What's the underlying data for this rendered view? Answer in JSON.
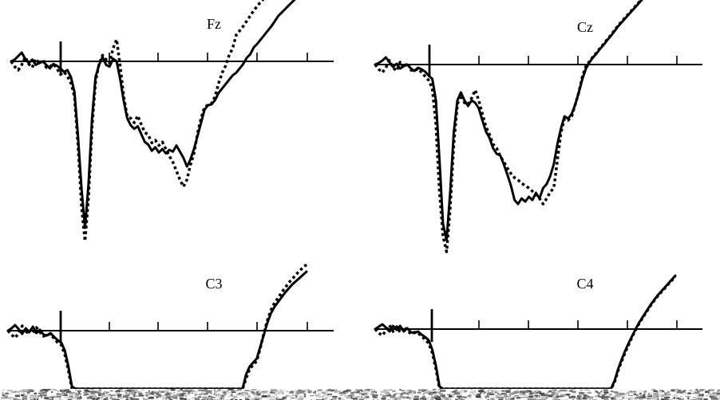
{
  "chart_data": [
    {
      "type": "line",
      "title": "Fz",
      "xlabel": "",
      "ylabel": "",
      "x": [
        0,
        4.5,
        9,
        13.5,
        18,
        22.5,
        27,
        31.5,
        36,
        40.5,
        45,
        49.5,
        54,
        58.5,
        63,
        67.5,
        72,
        76.5,
        81,
        85.5,
        90,
        94.5,
        99,
        103.5,
        108,
        112.5,
        117,
        121.5,
        126,
        130.5,
        135,
        139.5,
        144,
        148.5,
        153,
        157.5,
        162,
        166.5,
        171,
        175.5,
        180,
        184.5,
        189,
        193.5,
        198,
        202.5,
        207,
        211.5,
        216,
        220.5,
        225,
        229.5,
        234,
        238.5,
        243,
        247.5,
        252,
        256.5,
        261,
        265.5,
        270,
        274.5,
        279,
        283.5,
        288,
        292.5,
        297,
        301.5,
        306,
        310.5,
        315,
        319.5,
        324,
        328.5,
        333,
        337.5,
        342,
        346.5,
        351,
        355.5,
        360,
        364.5,
        369,
        373.5,
        378
      ],
      "series": [
        {
          "values": [
            0.0,
            0.2,
            0.6,
            1.0,
            0.3,
            -0.2,
            0.2,
            -0.4,
            -0.2,
            0.0,
            -0.4,
            -0.8,
            -0.3,
            -0.5,
            -0.8,
            -1.2,
            -1.0,
            -1.8,
            -3.5,
            -8.5,
            -14.5,
            -19.0,
            -14.0,
            -6.5,
            -1.8,
            -0.4,
            0.5,
            -0.4,
            -0.6,
            0.3,
            0.0,
            -2.0,
            -4.5,
            -6.5,
            -7.3,
            -7.7,
            -7.4,
            -8.3,
            -9.2,
            -9.5,
            -10.2,
            -9.8,
            -10.4,
            -10.0,
            -10.5,
            -10.1,
            -10.3,
            -9.6,
            -10.3,
            -11.0,
            -12.0,
            -11.2,
            -10.0,
            -8.5,
            -7.0,
            -5.5,
            -5.0,
            -4.9,
            -4.4,
            -3.6,
            -3.1,
            -2.6,
            -2.1,
            -1.6,
            -1.3,
            -0.8,
            -0.3,
            0.4,
            0.8,
            1.6,
            2.0,
            2.5,
            3.0,
            3.5,
            4.0,
            4.6,
            5.2,
            5.6,
            6.0,
            6.4,
            6.8,
            7.2,
            7.6,
            8.0,
            8.4
          ]
        },
        {
          "values": [
            0.0,
            -0.6,
            -1.0,
            -0.4,
            0.5,
            -0.3,
            -0.7,
            0.3,
            -0.3,
            0.2,
            -0.7,
            -0.6,
            -0.3,
            -0.8,
            -1.5,
            -1.2,
            -1.7,
            -2.5,
            -4.0,
            -9.5,
            -16.5,
            -20.5,
            -15.5,
            -7.5,
            -2.3,
            -0.3,
            0.7,
            0.2,
            -0.2,
            1.5,
            2.5,
            -0.5,
            -4.0,
            -6.3,
            -6.5,
            -7.0,
            -6.2,
            -7.2,
            -8.1,
            -8.4,
            -9.3,
            -9.0,
            -9.6,
            -9.2,
            -10.0,
            -10.8,
            -11.5,
            -12.5,
            -13.5,
            -14.3,
            -13.5,
            -11.8,
            -10.5,
            -8.2,
            -6.5,
            -5.2,
            -5.0,
            -4.8,
            -4.0,
            -2.5,
            -1.3,
            -0.5,
            0.7,
            1.5,
            3.0,
            3.5,
            4.0,
            4.6,
            5.2,
            5.8,
            6.3,
            6.8,
            7.2,
            7.7,
            8.0,
            8.5,
            8.9,
            9.3,
            9.7,
            10.0,
            10.4,
            10.8,
            11.2,
            11.6,
            12.0
          ]
        }
      ]
    },
    {
      "type": "line",
      "title": "Cz",
      "xlabel": "",
      "ylabel": "",
      "x": [
        0,
        4.5,
        9,
        13.5,
        18,
        22.5,
        27,
        31.5,
        36,
        40.5,
        45,
        49.5,
        54,
        58.5,
        63,
        67.5,
        72,
        76.5,
        81,
        85.5,
        90,
        94.5,
        99,
        103.5,
        108,
        112.5,
        117,
        121.5,
        126,
        130.5,
        135,
        139.5,
        144,
        148.5,
        153,
        157.5,
        162,
        166.5,
        171,
        175.5,
        180,
        184.5,
        189,
        193.5,
        198,
        202.5,
        207,
        211.5,
        216,
        220.5,
        225,
        229.5,
        234,
        238.5,
        243,
        247.5,
        252,
        256.5,
        261,
        265.5,
        270,
        274.5,
        279,
        283.5,
        288,
        292.5,
        297,
        301.5,
        306,
        310.5,
        315,
        319.5,
        324,
        328.5,
        333,
        337.5,
        342,
        346.5,
        351,
        355.5,
        360,
        364.5,
        369,
        373.5,
        378
      ],
      "series": [
        {
          "values": [
            0.0,
            0.2,
            0.5,
            0.9,
            0.3,
            -0.3,
            0.1,
            -0.5,
            -0.2,
            0.0,
            -0.5,
            -0.8,
            -0.4,
            -0.6,
            -0.9,
            -1.4,
            -1.8,
            -4.5,
            -12.0,
            -20.0,
            -22.0,
            -16.0,
            -8.5,
            -4.5,
            -3.5,
            -4.5,
            -5.2,
            -4.5,
            -4.8,
            -5.5,
            -7.0,
            -8.4,
            -9.2,
            -10.5,
            -11.2,
            -11.4,
            -12.5,
            -13.8,
            -15.2,
            -17.0,
            -17.5,
            -16.8,
            -17.2,
            -16.6,
            -17.0,
            -16.1,
            -16.8,
            -15.5,
            -15.0,
            -14.0,
            -12.5,
            -10.0,
            -8.0,
            -6.5,
            -6.8,
            -6.2,
            -5.0,
            -3.5,
            -1.8,
            -0.5,
            0.3,
            0.9,
            1.4,
            2.0,
            2.5,
            3.1,
            3.6,
            4.2,
            4.8,
            5.3,
            5.8,
            6.3,
            6.8,
            7.3,
            7.8,
            8.3,
            8.8,
            9.3,
            9.8,
            10.2,
            10.6,
            11.0,
            11.4,
            11.8,
            12.2
          ]
        },
        {
          "values": [
            0.0,
            -0.6,
            -1.0,
            -0.4,
            0.5,
            -0.4,
            -0.8,
            0.3,
            -0.4,
            0.2,
            -0.7,
            -0.8,
            -0.5,
            -1.0,
            -1.5,
            -2.0,
            -3.0,
            -7.5,
            -16.0,
            -21.5,
            -23.5,
            -18.0,
            -10.0,
            -5.0,
            -3.8,
            -4.8,
            -5.0,
            -4.2,
            -3.2,
            -4.5,
            -6.2,
            -7.8,
            -8.8,
            -10.0,
            -10.5,
            -11.5,
            -12.2,
            -13.0,
            -13.7,
            -14.2,
            -14.5,
            -14.9,
            -15.2,
            -15.5,
            -15.9,
            -16.3,
            -16.8,
            -17.5,
            -16.8,
            -16.0,
            -15.5,
            -12.0,
            -8.5,
            -6.8,
            -7.0,
            -6.5,
            -5.0,
            -3.5,
            -1.5,
            -0.2,
            0.4,
            1.0,
            1.5,
            2.1,
            2.6,
            3.2,
            3.7,
            4.3,
            4.9,
            5.4,
            5.9,
            6.4,
            6.9,
            7.4,
            7.9,
            8.4,
            8.9,
            9.4,
            9.9,
            10.3,
            10.7,
            11.1,
            11.5,
            11.9,
            12.3
          ]
        }
      ]
    },
    {
      "type": "line",
      "title": "C3",
      "xlabel": "",
      "ylabel": "",
      "x": [
        0,
        4.5,
        9,
        13.5,
        18,
        22.5,
        27,
        31.5,
        36,
        40.5,
        45,
        49.5,
        54,
        58.5,
        63,
        67.5,
        72,
        76.5,
        81,
        85.5,
        90,
        94.5,
        99,
        103.5,
        108,
        112.5,
        117,
        121.5,
        126,
        130.5,
        135,
        139.5,
        144,
        148.5,
        153,
        157.5,
        162,
        166.5,
        171,
        175.5,
        180,
        184.5,
        189,
        193.5,
        198,
        202.5,
        207,
        211.5,
        216,
        220.5,
        225,
        229.5,
        234,
        238.5,
        243,
        247.5,
        252,
        256.5,
        261,
        265.5,
        270,
        274.5,
        279,
        283.5,
        288,
        292.5,
        297,
        301.5,
        306,
        310.5,
        315,
        319.5,
        324,
        328.5,
        333,
        337.5,
        342,
        346.5,
        351,
        355.5,
        360,
        364.5,
        369,
        373.5,
        378
      ],
      "series": [
        {
          "values": [
            0.0,
            0.3,
            0.7,
            0.2,
            -0.4,
            0.3,
            -0.2,
            0.5,
            -0.3,
            0.1,
            -0.5,
            -0.6,
            -0.3,
            -0.8,
            -1.2,
            -1.5,
            -2.5,
            -4.5,
            -7.0,
            -8.5,
            -9.5,
            -10.0,
            -10.0,
            -10.0,
            -10.0,
            -10.0,
            -10.0,
            -10.0,
            -10.0,
            -10.0,
            -10.0,
            -10.0,
            -10.0,
            -10.0,
            -10.0,
            -10.0,
            -10.0,
            -10.0,
            -10.0,
            -10.0,
            -10.0,
            -10.0,
            -10.0,
            -10.0,
            -10.0,
            -10.0,
            -10.0,
            -10.0,
            -10.0,
            -10.0,
            -10.0,
            -10.0,
            -10.0,
            -10.0,
            -10.0,
            -10.0,
            -10.0,
            -10.0,
            -10.0,
            -10.0,
            -10.0,
            -10.0,
            -10.0,
            -10.0,
            -10.0,
            -9.0,
            -7.5,
            -5.5,
            -4.5,
            -4.0,
            -3.5,
            -2.0,
            -0.5,
            1.0,
            2.2,
            3.0,
            3.6,
            4.2,
            4.8,
            5.3,
            5.8,
            6.2,
            6.6,
            7.0,
            7.4
          ]
        },
        {
          "values": [
            0.0,
            -0.5,
            -0.9,
            -0.3,
            0.6,
            -0.4,
            0.2,
            -0.3,
            0.4,
            -0.2,
            -0.7,
            -0.5,
            -0.4,
            -1.0,
            -1.5,
            -1.8,
            -3.0,
            -5.0,
            -7.5,
            -9.0,
            -10.0,
            -10.0,
            -10.0,
            -10.0,
            -10.0,
            -10.0,
            -10.0,
            -10.0,
            -10.0,
            -10.0,
            -10.0,
            -10.0,
            -10.0,
            -10.0,
            -10.0,
            -10.0,
            -10.0,
            -10.0,
            -10.0,
            -10.0,
            -10.0,
            -8.8,
            -8.5,
            -9.5,
            -10.0,
            -10.0,
            -10.0,
            -10.0,
            -10.0,
            -10.0,
            -10.0,
            -10.0,
            -10.0,
            -10.0,
            -10.0,
            -10.0,
            -10.0,
            -10.0,
            -10.0,
            -10.0,
            -10.0,
            -10.0,
            -10.0,
            -10.0,
            -10.0,
            -9.2,
            -8.0,
            -6.0,
            -4.8,
            -4.3,
            -3.8,
            -2.2,
            -0.3,
            1.3,
            2.6,
            3.5,
            4.1,
            4.8,
            5.4,
            6.0,
            6.5,
            7.0,
            7.5,
            7.9,
            8.3
          ]
        }
      ]
    },
    {
      "type": "line",
      "title": "C4",
      "xlabel": "",
      "ylabel": "",
      "x": [
        0,
        4.5,
        9,
        13.5,
        18,
        22.5,
        27,
        31.5,
        36,
        40.5,
        45,
        49.5,
        54,
        58.5,
        63,
        67.5,
        72,
        76.5,
        81,
        85.5,
        90,
        94.5,
        99,
        103.5,
        108,
        112.5,
        117,
        121.5,
        126,
        130.5,
        135,
        139.5,
        144,
        148.5,
        153,
        157.5,
        162,
        166.5,
        171,
        175.5,
        180,
        184.5,
        189,
        193.5,
        198,
        202.5,
        207,
        211.5,
        216,
        220.5,
        225,
        229.5,
        234,
        238.5,
        243,
        247.5,
        252,
        256.5,
        261,
        265.5,
        270,
        274.5,
        279,
        283.5,
        288,
        292.5,
        297,
        301.5,
        306,
        310.5,
        315,
        319.5,
        324,
        328.5,
        333,
        337.5,
        342,
        346.5,
        351,
        355.5,
        360,
        364.5,
        369,
        373.5,
        378
      ],
      "series": [
        {
          "values": [
            0.0,
            0.3,
            0.6,
            0.2,
            -0.3,
            0.4,
            -0.1,
            0.4,
            -0.3,
            0.1,
            -0.4,
            -0.5,
            -0.3,
            -0.7,
            -1.0,
            -1.4,
            -2.6,
            -4.6,
            -7.2,
            -8.8,
            -9.6,
            -10.0,
            -10.0,
            -10.0,
            -10.0,
            -10.0,
            -10.0,
            -10.0,
            -10.0,
            -9.4,
            -9.0,
            -9.5,
            -9.2,
            -9.0,
            -9.4,
            -9.1,
            -9.0,
            -9.3,
            -9.1,
            -9.6,
            -10.0,
            -10.0,
            -10.0,
            -10.0,
            -10.0,
            -10.0,
            -10.0,
            -10.0,
            -10.0,
            -10.0,
            -10.0,
            -10.0,
            -10.0,
            -10.0,
            -10.0,
            -10.0,
            -10.0,
            -10.0,
            -10.0,
            -10.0,
            -10.0,
            -10.0,
            -10.0,
            -9.6,
            -9.2,
            -9.0,
            -8.0,
            -6.5,
            -5.0,
            -3.8,
            -2.7,
            -1.7,
            -0.8,
            0.1,
            0.9,
            1.6,
            2.3,
            3.0,
            3.6,
            4.2,
            4.7,
            5.2,
            5.7,
            6.2,
            6.7
          ]
        },
        {
          "values": [
            0.0,
            -0.5,
            -0.8,
            -0.2,
            0.5,
            -0.3,
            0.3,
            -0.4,
            0.3,
            -0.2,
            -0.6,
            -0.4,
            -0.5,
            -0.9,
            -1.3,
            -1.8,
            -3.0,
            -5.0,
            -7.5,
            -9.2,
            -10.0,
            -10.0,
            -10.0,
            -10.0,
            -10.0,
            -10.0,
            -10.0,
            -10.0,
            -10.0,
            -10.0,
            -10.0,
            -10.0,
            -10.0,
            -10.0,
            -10.0,
            -10.0,
            -10.0,
            -10.0,
            -10.0,
            -10.0,
            -10.0,
            -10.0,
            -10.0,
            -10.0,
            -10.0,
            -10.0,
            -10.0,
            -10.0,
            -10.0,
            -10.0,
            -10.0,
            -10.0,
            -10.0,
            -10.0,
            -10.0,
            -10.0,
            -10.0,
            -10.0,
            -10.0,
            -10.0,
            -10.0,
            -10.0,
            -9.5,
            -9.0,
            -9.2,
            -9.6,
            -8.2,
            -6.7,
            -5.2,
            -4.0,
            -2.9,
            -1.9,
            -0.9,
            0.0,
            0.8,
            1.5,
            2.2,
            2.9,
            3.5,
            4.1,
            4.6,
            5.1,
            5.6,
            6.1,
            6.6
          ]
        }
      ]
    }
  ]
}
